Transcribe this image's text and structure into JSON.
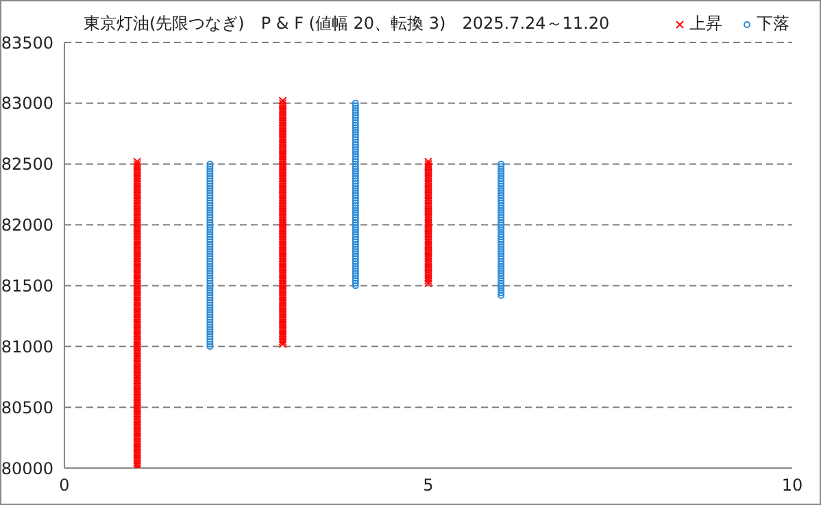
{
  "chart_data": {
    "type": "scatter",
    "title": "東京灯油(先限つなぎ)　P & F (値幅 20、転換 3)　2025.7.24～11.20",
    "xlim": [
      0,
      10
    ],
    "xticks": [
      0,
      5,
      10
    ],
    "ylim": [
      80000,
      83500
    ],
    "yticks": [
      80000,
      80500,
      81000,
      81500,
      82000,
      82500,
      83000,
      83500
    ],
    "grid": "y",
    "legend": "top right",
    "series": [
      {
        "name": "上昇",
        "color": "#ff0000",
        "marker": "cross",
        "x": [
          1,
          1,
          1,
          1,
          1,
          1,
          1,
          1,
          1,
          1,
          1,
          1,
          1,
          1,
          1,
          1,
          1,
          1,
          1,
          1,
          1,
          1,
          1,
          1,
          1,
          1,
          1,
          1,
          1,
          1,
          1,
          1,
          1,
          1,
          1,
          1,
          1,
          1,
          1,
          1,
          1,
          1,
          1,
          1,
          1,
          1,
          1,
          1,
          1,
          1,
          1,
          1,
          1,
          1,
          1,
          1,
          1,
          1,
          1,
          1,
          1,
          1,
          1,
          1,
          1,
          1,
          1,
          1,
          1,
          1,
          1,
          1,
          1,
          1,
          1,
          1,
          1,
          1,
          1,
          1,
          1,
          1,
          1,
          1,
          1,
          1,
          1,
          1,
          1,
          1,
          1,
          1,
          1,
          1,
          1,
          1,
          1,
          1,
          1,
          1,
          1,
          1,
          1,
          1,
          1,
          1,
          1,
          1,
          1,
          1,
          1,
          1,
          1,
          1,
          1,
          1,
          1,
          1,
          1,
          1,
          1,
          1,
          1,
          1,
          1,
          1,
          1,
          3,
          3,
          3,
          3,
          3,
          3,
          3,
          3,
          3,
          3,
          3,
          3,
          3,
          3,
          3,
          3,
          3,
          3,
          3,
          3,
          3,
          3,
          3,
          3,
          3,
          3,
          3,
          3,
          3,
          3,
          3,
          3,
          3,
          3,
          3,
          3,
          3,
          3,
          3,
          3,
          3,
          3,
          3,
          3,
          3,
          3,
          3,
          3,
          3,
          3,
          3,
          3,
          3,
          3,
          3,
          3,
          3,
          3,
          3,
          3,
          3,
          3,
          3,
          3,
          3,
          3,
          3,
          3,
          3,
          3,
          3,
          3,
          3,
          3,
          3,
          3,
          3,
          3,
          3,
          3,
          3,
          3,
          3,
          3,
          3,
          3,
          3,
          3,
          3,
          3,
          3,
          3,
          3,
          3,
          3,
          3,
          3,
          3,
          3,
          3,
          3,
          5,
          5,
          5,
          5,
          5,
          5,
          5,
          5,
          5,
          5,
          5,
          5,
          5,
          5,
          5,
          5,
          5,
          5,
          5,
          5,
          5,
          5,
          5,
          5,
          5,
          5,
          5,
          5,
          5,
          5,
          5,
          5,
          5,
          5,
          5,
          5,
          5,
          5,
          5,
          5,
          5,
          5,
          5,
          5,
          5,
          5,
          5,
          5,
          5,
          5,
          5
        ],
        "values": [
          80000,
          80020,
          80040,
          80060,
          80080,
          80100,
          80120,
          80140,
          80160,
          80180,
          80200,
          80220,
          80240,
          80260,
          80280,
          80300,
          80320,
          80340,
          80360,
          80380,
          80400,
          80420,
          80440,
          80460,
          80480,
          80500,
          80520,
          80540,
          80560,
          80580,
          80600,
          80620,
          80640,
          80660,
          80680,
          80700,
          80720,
          80740,
          80760,
          80780,
          80800,
          80820,
          80840,
          80860,
          80880,
          80900,
          80920,
          80940,
          80960,
          80980,
          81000,
          81020,
          81040,
          81060,
          81080,
          81100,
          81120,
          81140,
          81160,
          81180,
          81200,
          81220,
          81240,
          81260,
          81280,
          81300,
          81320,
          81340,
          81360,
          81380,
          81400,
          81420,
          81440,
          81460,
          81480,
          81500,
          81520,
          81540,
          81560,
          81580,
          81600,
          81620,
          81640,
          81660,
          81680,
          81700,
          81720,
          81740,
          81760,
          81780,
          81800,
          81820,
          81840,
          81860,
          81880,
          81900,
          81920,
          81940,
          81960,
          81980,
          82000,
          82020,
          82040,
          82060,
          82080,
          82100,
          82120,
          82140,
          82160,
          82180,
          82200,
          82220,
          82240,
          82260,
          82280,
          82300,
          82320,
          82340,
          82360,
          82380,
          82400,
          82420,
          82440,
          82460,
          82480,
          82500,
          82520,
          81020,
          81040,
          81060,
          81080,
          81100,
          81120,
          81140,
          81160,
          81180,
          81200,
          81220,
          81240,
          81260,
          81280,
          81300,
          81320,
          81340,
          81360,
          81380,
          81400,
          81420,
          81440,
          81460,
          81480,
          81500,
          81520,
          81540,
          81560,
          81580,
          81600,
          81620,
          81640,
          81660,
          81680,
          81700,
          81720,
          81740,
          81760,
          81780,
          81800,
          81820,
          81840,
          81860,
          81880,
          81900,
          81920,
          81940,
          81960,
          81980,
          82000,
          82020,
          82040,
          82060,
          82080,
          82100,
          82120,
          82140,
          82160,
          82180,
          82200,
          82220,
          82240,
          82260,
          82280,
          82300,
          82320,
          82340,
          82360,
          82380,
          82400,
          82420,
          82440,
          82460,
          82480,
          82500,
          82520,
          82540,
          82560,
          82580,
          82600,
          82620,
          82640,
          82660,
          82680,
          82700,
          82720,
          82740,
          82760,
          82780,
          82800,
          82820,
          82840,
          82860,
          82880,
          82900,
          82920,
          82940,
          82960,
          82980,
          83000,
          83020,
          81520,
          81540,
          81560,
          81580,
          81600,
          81620,
          81640,
          81660,
          81680,
          81700,
          81720,
          81740,
          81760,
          81780,
          81800,
          81820,
          81840,
          81860,
          81880,
          81900,
          81920,
          81940,
          81960,
          81980,
          82000,
          82020,
          82040,
          82060,
          82080,
          82100,
          82120,
          82140,
          82160,
          82180,
          82200,
          82220,
          82240,
          82260,
          82280,
          82300,
          82320,
          82340,
          82360,
          82380,
          82400,
          82420,
          82440,
          82460,
          82480,
          82500,
          82520
        ]
      },
      {
        "name": "下落",
        "color": "#2e8bd6",
        "marker": "circle",
        "x": [
          2,
          2,
          2,
          2,
          2,
          2,
          2,
          2,
          2,
          2,
          2,
          2,
          2,
          2,
          2,
          2,
          2,
          2,
          2,
          2,
          2,
          2,
          2,
          2,
          2,
          2,
          2,
          2,
          2,
          2,
          2,
          2,
          2,
          2,
          2,
          2,
          2,
          2,
          2,
          2,
          2,
          2,
          2,
          2,
          2,
          2,
          2,
          2,
          2,
          2,
          2,
          2,
          2,
          2,
          2,
          2,
          2,
          2,
          2,
          2,
          2,
          2,
          2,
          2,
          2,
          2,
          2,
          2,
          2,
          2,
          2,
          2,
          2,
          2,
          2,
          2,
          4,
          4,
          4,
          4,
          4,
          4,
          4,
          4,
          4,
          4,
          4,
          4,
          4,
          4,
          4,
          4,
          4,
          4,
          4,
          4,
          4,
          4,
          4,
          4,
          4,
          4,
          4,
          4,
          4,
          4,
          4,
          4,
          4,
          4,
          4,
          4,
          4,
          4,
          4,
          4,
          4,
          4,
          4,
          4,
          4,
          4,
          4,
          4,
          4,
          4,
          4,
          4,
          4,
          4,
          4,
          4,
          4,
          4,
          4,
          4,
          4,
          4,
          4,
          4,
          4,
          4,
          4,
          4,
          4,
          4,
          4,
          4,
          4,
          4,
          4,
          4,
          6,
          6,
          6,
          6,
          6,
          6,
          6,
          6,
          6,
          6,
          6,
          6,
          6,
          6,
          6,
          6,
          6,
          6,
          6,
          6,
          6,
          6,
          6,
          6,
          6,
          6,
          6,
          6,
          6,
          6,
          6,
          6,
          6,
          6,
          6,
          6,
          6,
          6,
          6,
          6,
          6,
          6,
          6,
          6,
          6,
          6,
          6,
          6,
          6,
          6,
          6,
          6,
          6,
          6,
          6
        ],
        "values": [
          81000,
          81020,
          81040,
          81060,
          81080,
          81100,
          81120,
          81140,
          81160,
          81180,
          81200,
          81220,
          81240,
          81260,
          81280,
          81300,
          81320,
          81340,
          81360,
          81380,
          81400,
          81420,
          81440,
          81460,
          81480,
          81500,
          81520,
          81540,
          81560,
          81580,
          81600,
          81620,
          81640,
          81660,
          81680,
          81700,
          81720,
          81740,
          81760,
          81780,
          81800,
          81820,
          81840,
          81860,
          81880,
          81900,
          81920,
          81940,
          81960,
          81980,
          82000,
          82020,
          82040,
          82060,
          82080,
          82100,
          82120,
          82140,
          82160,
          82180,
          82200,
          82220,
          82240,
          82260,
          82280,
          82300,
          82320,
          82340,
          82360,
          82380,
          82400,
          82420,
          82440,
          82460,
          82480,
          82500,
          81500,
          81520,
          81540,
          81560,
          81580,
          81600,
          81620,
          81640,
          81660,
          81680,
          81700,
          81720,
          81740,
          81760,
          81780,
          81800,
          81820,
          81840,
          81860,
          81880,
          81900,
          81920,
          81940,
          81960,
          81980,
          82000,
          82020,
          82040,
          82060,
          82080,
          82100,
          82120,
          82140,
          82160,
          82180,
          82200,
          82220,
          82240,
          82260,
          82280,
          82300,
          82320,
          82340,
          82360,
          82380,
          82400,
          82420,
          82440,
          82460,
          82480,
          82500,
          82520,
          82540,
          82560,
          82580,
          82600,
          82620,
          82640,
          82660,
          82680,
          82700,
          82720,
          82740,
          82760,
          82780,
          82800,
          82820,
          82840,
          82860,
          82880,
          82900,
          82920,
          82940,
          82960,
          82980,
          83000,
          81420,
          81440,
          81460,
          81480,
          81500,
          81520,
          81540,
          81560,
          81580,
          81600,
          81620,
          81640,
          81660,
          81680,
          81700,
          81720,
          81740,
          81760,
          81780,
          81800,
          81820,
          81840,
          81860,
          81880,
          81900,
          81920,
          81940,
          81960,
          81980,
          82000,
          82020,
          82040,
          82060,
          82080,
          82100,
          82120,
          82140,
          82160,
          82180,
          82200,
          82220,
          82240,
          82260,
          82280,
          82300,
          82320,
          82340,
          82360,
          82380,
          82400,
          82420,
          82440,
          82460,
          82480,
          82500
        ]
      }
    ]
  }
}
